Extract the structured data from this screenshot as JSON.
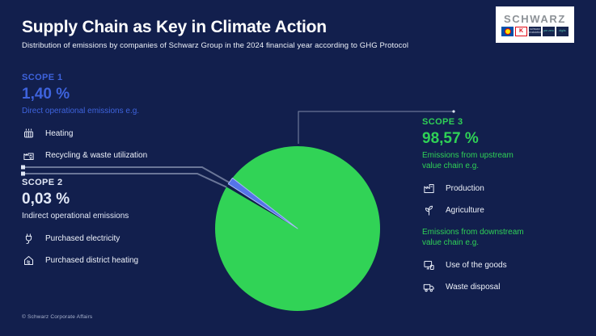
{
  "page": {
    "background": "#121f4d"
  },
  "header": {
    "title": "Supply Chain as Key in Climate Action",
    "subtitle": "Distribution of emissions by companies of Schwarz Group in the 2024 financial year according to GHG Protocol"
  },
  "logo": {
    "wordmark": "SCHWARZ",
    "brands": [
      {
        "name": "lidl",
        "label": "Lidl",
        "tile_text": ""
      },
      {
        "name": "kaufland",
        "label": "Kaufland",
        "tile_text": "K"
      },
      {
        "name": "schwarz-produktion",
        "label": "Schwarz Produktion",
        "tile_text": "schwarz produktion"
      },
      {
        "name": "prezero",
        "label": "PreZero",
        "tile_text": "pre zero"
      },
      {
        "name": "schwarz-digits",
        "label": "Schwarz Digits",
        "tile_text": "digits"
      }
    ]
  },
  "scopes": {
    "scope1": {
      "label": "SCOPE 1",
      "value": "1,40 %",
      "description": "Direct operational emissions e.g.",
      "accent": "#3e63dd",
      "items": [
        {
          "icon": "radiator-icon",
          "label": "Heating"
        },
        {
          "icon": "recycling-plant-icon",
          "label": "Recycling & waste utilization"
        }
      ]
    },
    "scope2": {
      "label": "SCOPE 2",
      "value": "0,03 %",
      "description": "Indirect operational emissions",
      "accent": "#e2e8f6",
      "items": [
        {
          "icon": "power-plug-icon",
          "label": "Purchased electricity"
        },
        {
          "icon": "heated-house-icon",
          "label": "Purchased district heating"
        }
      ]
    },
    "scope3": {
      "label": "SCOPE 3",
      "value": "98,57 %",
      "accent": "#2fd156",
      "upstream_desc_line1": "Emissions from upstream",
      "upstream_desc_line2": "value chain e.g.",
      "upstream_items": [
        {
          "icon": "factory-icon",
          "label": "Production"
        },
        {
          "icon": "plant-sprout-icon",
          "label": "Agriculture"
        }
      ],
      "downstream_desc_line1": "Emissions from downstream",
      "downstream_desc_line2": "value chain e.g.",
      "downstream_items": [
        {
          "icon": "appliances-icon",
          "label": "Use of the goods"
        },
        {
          "icon": "garbage-truck-icon",
          "label": "Waste disposal"
        }
      ]
    }
  },
  "chart_data": {
    "type": "pie",
    "unit": "%",
    "slices": [
      {
        "label": "SCOPE 1",
        "value": 1.4,
        "display": "1,40 %",
        "color": "#5574e8"
      },
      {
        "label": "SCOPE 2",
        "value": 0.03,
        "display": "0,03 %",
        "color": "#121f4d"
      },
      {
        "label": "SCOPE 3",
        "value": 98.57,
        "display": "98,57 %",
        "color": "#31d356"
      }
    ],
    "layout": {
      "legend": "none",
      "callout_labels": true,
      "wedges_start_deg": 300.4,
      "min_visible_slice_deg": 2.4,
      "scope1_highlight_stroke": "#a9bbf7"
    }
  },
  "footer": {
    "credit": "© Schwarz Corporate Affairs"
  }
}
